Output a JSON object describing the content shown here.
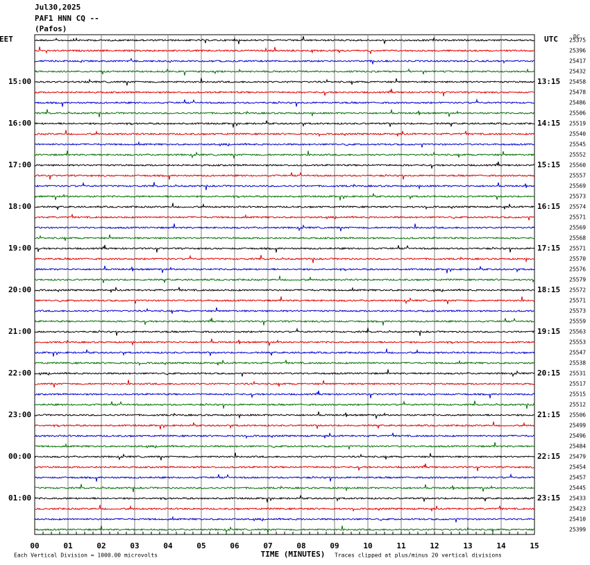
{
  "header": {
    "date": "Jul30,2025",
    "station": "PAF1 HNN CQ --",
    "location": "(Pafos)"
  },
  "left_axis": {
    "title": "EET",
    "labels": [
      "15:00",
      "16:00",
      "17:00",
      "18:00",
      "19:00",
      "20:00",
      "21:00",
      "22:00",
      "23:00",
      "00:00",
      "01:00"
    ]
  },
  "right_axis": {
    "title": "UTC",
    "labels": [
      "13:15",
      "14:15",
      "15:15",
      "16:15",
      "17:15",
      "18:15",
      "19:15",
      "20:15",
      "21:15",
      "22:15",
      "23:15"
    ],
    "corner_label": "DC"
  },
  "trace_colors": [
    "#000000",
    "#e00000",
    "#0000d0",
    "#007000"
  ],
  "trace_levels": [
    25375,
    25396,
    25417,
    25432,
    25458,
    25478,
    25486,
    25506,
    25519,
    25540,
    25545,
    25552,
    25560,
    25557,
    25569,
    25573,
    25574,
    25571,
    25569,
    25568,
    25571,
    25570,
    25576,
    25579,
    25572,
    25571,
    25573,
    25559,
    25563,
    25553,
    25547,
    25538,
    25531,
    25517,
    25515,
    25512,
    25506,
    25499,
    25496,
    25484,
    25479,
    25454,
    25457,
    25445,
    25433,
    25423,
    25410,
    25399
  ],
  "x_axis": {
    "title": "TIME (MINUTES)",
    "ticks": [
      "00",
      "01",
      "02",
      "03",
      "04",
      "05",
      "06",
      "07",
      "08",
      "09",
      "10",
      "11",
      "12",
      "13",
      "14",
      "15"
    ]
  },
  "footer": {
    "scale_note": "Each Vertical Division = 1000.00 microvolts",
    "clip_note": "Traces clipped at plus/minus 20 vertical divisions"
  }
}
